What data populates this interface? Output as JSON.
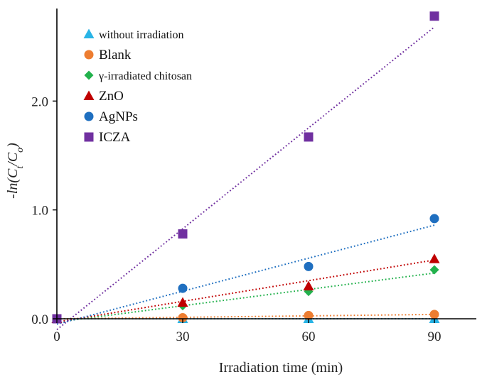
{
  "chart_data": {
    "type": "scatter",
    "title": "",
    "xlabel": "Irradiation time (min)",
    "ylabel": "-ln(Ct/Co)",
    "ylabel_parts": {
      "prefix": "-ln(",
      "c1": "C",
      "s1": "t",
      "slash": "/",
      "c2": "C",
      "s2": "o",
      "suffix": ")"
    },
    "xlim": [
      0,
      100
    ],
    "ylim": [
      0,
      2.85
    ],
    "xticks": [
      0,
      30,
      60,
      90
    ],
    "xtick_labels": [
      "0",
      "30",
      "60",
      "90"
    ],
    "yticks": [
      0,
      1,
      2
    ],
    "ytick_labels": [
      "0.0",
      "1.0",
      "2.0"
    ],
    "grid": false,
    "legend_position": "top-left",
    "x": [
      0,
      30,
      60,
      90
    ],
    "series": [
      {
        "name": "without irradiation",
        "marker": "triangle",
        "color": "#29b4e6",
        "values": [
          0,
          0,
          0,
          0
        ],
        "trend": [
          0,
          0
        ]
      },
      {
        "name": "Blank",
        "marker": "circle",
        "color": "#ed7d31",
        "values": [
          0,
          0.01,
          0.03,
          0.04
        ],
        "trend": [
          0,
          0.04
        ]
      },
      {
        "name": "γ-irradiated chitosan",
        "marker": "diamond",
        "color": "#22b14c",
        "values": [
          0,
          0.12,
          0.25,
          0.45
        ],
        "trend": [
          -0.03,
          0.42
        ]
      },
      {
        "name": "ZnO",
        "marker": "triangle",
        "color": "#c00000",
        "values": [
          0,
          0.15,
          0.3,
          0.55
        ],
        "trend": [
          -0.03,
          0.54
        ]
      },
      {
        "name": "AgNPs",
        "marker": "circle",
        "color": "#1f6fc0",
        "values": [
          0,
          0.28,
          0.48,
          0.92
        ],
        "trend": [
          -0.05,
          0.86
        ]
      },
      {
        "name": "ICZA",
        "marker": "square",
        "color": "#7030a0",
        "values": [
          0,
          0.78,
          1.67,
          2.78
        ],
        "trend": [
          -0.1,
          2.68
        ]
      }
    ]
  }
}
